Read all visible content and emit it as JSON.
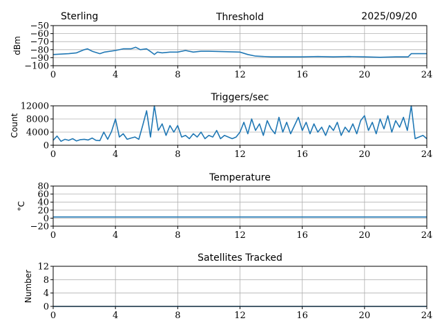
{
  "header": {
    "site": "Sterling",
    "date": "2025/09/20"
  },
  "colors": {
    "line": "#1f77b4"
  },
  "chart_data": [
    {
      "type": "line",
      "title": "Threshold",
      "xlabel": "",
      "ylabel": "dBm",
      "xlim": [
        0,
        24
      ],
      "ylim": [
        -100,
        -50
      ],
      "grid": true,
      "xticks": [
        "0",
        "4",
        "8",
        "12",
        "16",
        "20",
        "24"
      ],
      "yticks": [
        "-50",
        "-60",
        "-70",
        "-80",
        "-90",
        "-100"
      ],
      "x": [
        0,
        0.5,
        1,
        1.5,
        2,
        2.2,
        2.5,
        3,
        3.3,
        4,
        4.5,
        5,
        5.3,
        5.6,
        6,
        6.3,
        6.5,
        6.7,
        7,
        7.5,
        8,
        8.5,
        9,
        9.5,
        10,
        11,
        12,
        12.5,
        13,
        14,
        15,
        16,
        17,
        18,
        19,
        20,
        21,
        22,
        22.8,
        23,
        24
      ],
      "values": [
        -86,
        -85.5,
        -85,
        -84,
        -80,
        -79,
        -82,
        -85,
        -83,
        -81,
        -79,
        -79,
        -77,
        -80,
        -79,
        -83,
        -86,
        -83,
        -84,
        -83,
        -83,
        -81,
        -83,
        -82,
        -82,
        -82.5,
        -83,
        -86,
        -88,
        -89,
        -89,
        -89,
        -88.5,
        -89,
        -88.5,
        -89,
        -89.5,
        -89,
        -89,
        -85,
        -85
      ]
    },
    {
      "type": "line",
      "title": "Triggers/sec",
      "xlabel": "",
      "ylabel": "Count",
      "xlim": [
        0,
        24
      ],
      "ylim": [
        0,
        12000
      ],
      "grid": true,
      "xticks": [
        "0",
        "4",
        "8",
        "12",
        "16",
        "20",
        "24"
      ],
      "yticks": [
        "12000",
        "8000",
        "4000",
        "0"
      ],
      "x_step": 0.25,
      "values": [
        1500,
        2800,
        1200,
        1800,
        1500,
        2000,
        1300,
        1700,
        1800,
        1600,
        2200,
        1500,
        1400,
        4000,
        1800,
        4200,
        8000,
        2500,
        3500,
        1800,
        2200,
        2500,
        1800,
        6000,
        10500,
        2500,
        12000,
        4500,
        6500,
        3000,
        6000,
        4000,
        6000,
        2500,
        3000,
        2000,
        3500,
        2500,
        4000,
        2000,
        3000,
        2500,
        4500,
        2000,
        3000,
        2500,
        2000,
        2500,
        4000,
        7000,
        3500,
        8000,
        4500,
        6500,
        3000,
        7500,
        5000,
        3500,
        8500,
        4000,
        7000,
        3500,
        6000,
        8500,
        4500,
        7000,
        3500,
        6500,
        4000,
        5500,
        3000,
        6000,
        4500,
        7000,
        3000,
        5500,
        4000,
        6500,
        3500,
        7500,
        9000,
        4500,
        7000,
        3500,
        8000,
        5000,
        9000,
        4000,
        7500,
        5500,
        8500,
        4500,
        12000,
        2000,
        2500,
        3000,
        2000
      ]
    },
    {
      "type": "line",
      "title": "Temperature",
      "xlabel": "",
      "ylabel": "°C",
      "xlim": [
        0,
        24
      ],
      "ylim": [
        -20,
        80
      ],
      "grid": true,
      "xticks": [
        "0",
        "4",
        "8",
        "12",
        "16",
        "20",
        "24"
      ],
      "yticks": [
        "80",
        "60",
        "40",
        "20",
        "0",
        "-20"
      ],
      "x": [
        0,
        24
      ],
      "values": [
        3,
        3
      ]
    },
    {
      "type": "line",
      "title": "Satellites Tracked",
      "xlabel": "",
      "ylabel": "Number",
      "xlim": [
        0,
        24
      ],
      "ylim": [
        0,
        12
      ],
      "grid": true,
      "xticks": [
        "0",
        "4",
        "8",
        "12",
        "16",
        "20",
        "24"
      ],
      "yticks": [
        "12",
        "8",
        "4",
        "0"
      ],
      "x": [
        0,
        24
      ],
      "values": [
        0,
        0
      ]
    }
  ]
}
